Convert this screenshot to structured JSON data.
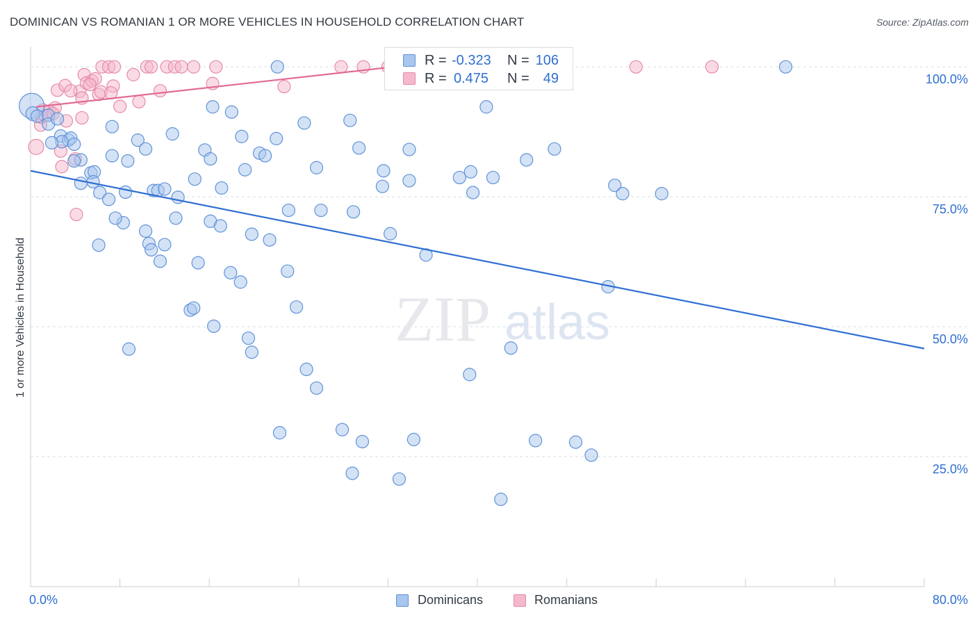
{
  "title": "DOMINICAN VS ROMANIAN 1 OR MORE VEHICLES IN HOUSEHOLD CORRELATION CHART",
  "source": "Source: ZipAtlas.com",
  "watermark": {
    "zip": "ZIP",
    "atlas": "atlas"
  },
  "colors": {
    "blue_fill": "#a9c6ee",
    "blue_stroke": "#5f93d8",
    "blue_line": "#2f6fd1",
    "pink_fill": "#f5b8cc",
    "pink_stroke": "#e58aa8",
    "pink_line": "#e06a94",
    "value_text": "#2f6fd1",
    "grid": "#d9dde3"
  },
  "legend": {
    "r_label": "R =",
    "n_label": "N =",
    "rows": [
      {
        "series": "Dominicans",
        "r": "-0.323",
        "n": "106"
      },
      {
        "series": "Romanians",
        "r": "0.475",
        "n": "49"
      }
    ]
  },
  "chart_data": {
    "type": "scatter",
    "title": "DOMINICAN VS ROMANIAN 1 OR MORE VEHICLES IN HOUSEHOLD CORRELATION CHART",
    "xlabel": "",
    "ylabel": "1 or more Vehicles in Household",
    "xlim": [
      0,
      80
    ],
    "ylim": [
      0,
      103.5
    ],
    "x_tick_labels": [
      "0.0%",
      "80.0%"
    ],
    "y_ticks": [
      25,
      50,
      75,
      100
    ],
    "y_tick_labels": [
      "25.0%",
      "50.0%",
      "75.0%",
      "100.0%"
    ],
    "grid": "horizontal dashed",
    "legend_placement": "top-center",
    "series": [
      {
        "name": "Dominicans",
        "color": "#a9c6ee",
        "trend": {
          "x": [
            0,
            80
          ],
          "y": [
            80.0,
            45.8
          ]
        },
        "points": [
          {
            "x": 0.1,
            "y": 92.5,
            "r": 18
          },
          {
            "x": 0.2,
            "y": 91.0,
            "r": 10
          },
          {
            "x": 0.6,
            "y": 90.5,
            "r": 9
          },
          {
            "x": 1.6,
            "y": 90.7,
            "r": 9
          },
          {
            "x": 1.6,
            "y": 89.0,
            "r": 9
          },
          {
            "x": 2.4,
            "y": 90.0,
            "r": 9
          },
          {
            "x": 2.7,
            "y": 86.7,
            "r": 9
          },
          {
            "x": 3.4,
            "y": 85.9,
            "r": 9
          },
          {
            "x": 3.6,
            "y": 86.3,
            "r": 9
          },
          {
            "x": 3.9,
            "y": 85.1,
            "r": 9
          },
          {
            "x": 2.8,
            "y": 85.6,
            "r": 9
          },
          {
            "x": 1.9,
            "y": 85.4,
            "r": 9
          },
          {
            "x": 4.5,
            "y": 82.1,
            "r": 9
          },
          {
            "x": 5.4,
            "y": 79.6,
            "r": 9
          },
          {
            "x": 7.3,
            "y": 88.5,
            "r": 9
          },
          {
            "x": 7.3,
            "y": 82.9,
            "r": 9
          },
          {
            "x": 8.7,
            "y": 81.9,
            "r": 9
          },
          {
            "x": 3.9,
            "y": 81.9,
            "r": 9
          },
          {
            "x": 5.7,
            "y": 79.8,
            "r": 9
          },
          {
            "x": 4.5,
            "y": 77.6,
            "r": 9
          },
          {
            "x": 5.6,
            "y": 77.9,
            "r": 9
          },
          {
            "x": 6.2,
            "y": 75.8,
            "r": 9
          },
          {
            "x": 7.0,
            "y": 74.5,
            "r": 9
          },
          {
            "x": 9.6,
            "y": 85.9,
            "r": 9
          },
          {
            "x": 10.3,
            "y": 84.2,
            "r": 9
          },
          {
            "x": 11.0,
            "y": 76.2,
            "r": 9
          },
          {
            "x": 11.4,
            "y": 76.2,
            "r": 9
          },
          {
            "x": 8.5,
            "y": 75.9,
            "r": 9
          },
          {
            "x": 12.7,
            "y": 87.1,
            "r": 9
          },
          {
            "x": 12.0,
            "y": 76.5,
            "r": 9
          },
          {
            "x": 13.2,
            "y": 74.9,
            "r": 9
          },
          {
            "x": 14.7,
            "y": 78.4,
            "r": 9
          },
          {
            "x": 15.6,
            "y": 84.0,
            "r": 9
          },
          {
            "x": 16.1,
            "y": 82.3,
            "r": 9
          },
          {
            "x": 17.1,
            "y": 76.7,
            "r": 9
          },
          {
            "x": 18.0,
            "y": 91.3,
            "r": 9
          },
          {
            "x": 18.9,
            "y": 86.6,
            "r": 9
          },
          {
            "x": 19.2,
            "y": 80.2,
            "r": 9
          },
          {
            "x": 20.5,
            "y": 83.4,
            "r": 9
          },
          {
            "x": 21.0,
            "y": 82.9,
            "r": 9
          },
          {
            "x": 22.0,
            "y": 86.2,
            "r": 9
          },
          {
            "x": 22.1,
            "y": 100.0,
            "r": 9
          },
          {
            "x": 24.5,
            "y": 89.2,
            "r": 9
          },
          {
            "x": 23.1,
            "y": 72.4,
            "r": 9
          },
          {
            "x": 25.6,
            "y": 80.6,
            "r": 9
          },
          {
            "x": 26.0,
            "y": 72.4,
            "r": 9
          },
          {
            "x": 28.6,
            "y": 89.7,
            "r": 9
          },
          {
            "x": 29.4,
            "y": 84.4,
            "r": 9
          },
          {
            "x": 28.9,
            "y": 72.1,
            "r": 9
          },
          {
            "x": 31.6,
            "y": 80.0,
            "r": 9
          },
          {
            "x": 31.5,
            "y": 77.0,
            "r": 9
          },
          {
            "x": 32.2,
            "y": 67.9,
            "r": 9
          },
          {
            "x": 33.9,
            "y": 84.1,
            "r": 9
          },
          {
            "x": 33.9,
            "y": 78.1,
            "r": 9
          },
          {
            "x": 35.4,
            "y": 63.8,
            "r": 9
          },
          {
            "x": 38.4,
            "y": 78.7,
            "r": 9
          },
          {
            "x": 39.4,
            "y": 79.8,
            "r": 9
          },
          {
            "x": 39.6,
            "y": 75.8,
            "r": 9
          },
          {
            "x": 40.8,
            "y": 92.3,
            "r": 9
          },
          {
            "x": 41.4,
            "y": 78.7,
            "r": 9
          },
          {
            "x": 44.4,
            "y": 82.1,
            "r": 9
          },
          {
            "x": 46.9,
            "y": 84.2,
            "r": 9
          },
          {
            "x": 52.3,
            "y": 77.2,
            "r": 9
          },
          {
            "x": 53.0,
            "y": 75.6,
            "r": 9
          },
          {
            "x": 56.5,
            "y": 75.6,
            "r": 9
          },
          {
            "x": 67.6,
            "y": 100.0,
            "r": 9
          },
          {
            "x": 16.3,
            "y": 92.3,
            "r": 9
          },
          {
            "x": 16.1,
            "y": 70.3,
            "r": 9
          },
          {
            "x": 17.0,
            "y": 69.4,
            "r": 9
          },
          {
            "x": 13.0,
            "y": 70.9,
            "r": 9
          },
          {
            "x": 10.3,
            "y": 68.4,
            "r": 9
          },
          {
            "x": 10.6,
            "y": 66.0,
            "r": 9
          },
          {
            "x": 12.0,
            "y": 65.8,
            "r": 9
          },
          {
            "x": 10.8,
            "y": 64.8,
            "r": 9
          },
          {
            "x": 8.3,
            "y": 70.0,
            "r": 9
          },
          {
            "x": 7.6,
            "y": 70.9,
            "r": 9
          },
          {
            "x": 6.1,
            "y": 65.7,
            "r": 9
          },
          {
            "x": 11.6,
            "y": 62.6,
            "r": 9
          },
          {
            "x": 15.0,
            "y": 62.3,
            "r": 9
          },
          {
            "x": 17.9,
            "y": 60.4,
            "r": 9
          },
          {
            "x": 18.8,
            "y": 58.6,
            "r": 9
          },
          {
            "x": 19.8,
            "y": 67.8,
            "r": 9
          },
          {
            "x": 21.4,
            "y": 66.7,
            "r": 9
          },
          {
            "x": 23.0,
            "y": 60.7,
            "r": 9
          },
          {
            "x": 23.8,
            "y": 53.8,
            "r": 9
          },
          {
            "x": 14.3,
            "y": 53.2,
            "r": 9
          },
          {
            "x": 14.6,
            "y": 53.6,
            "r": 9
          },
          {
            "x": 16.4,
            "y": 50.1,
            "r": 9
          },
          {
            "x": 19.5,
            "y": 47.8,
            "r": 9
          },
          {
            "x": 19.8,
            "y": 45.1,
            "r": 9
          },
          {
            "x": 8.8,
            "y": 45.7,
            "r": 9
          },
          {
            "x": 24.7,
            "y": 41.8,
            "r": 9
          },
          {
            "x": 25.6,
            "y": 38.2,
            "r": 9
          },
          {
            "x": 22.3,
            "y": 29.6,
            "r": 9
          },
          {
            "x": 27.9,
            "y": 30.2,
            "r": 9
          },
          {
            "x": 29.7,
            "y": 27.9,
            "r": 9
          },
          {
            "x": 34.3,
            "y": 28.3,
            "r": 9
          },
          {
            "x": 39.3,
            "y": 40.8,
            "r": 9
          },
          {
            "x": 43.0,
            "y": 45.9,
            "r": 9
          },
          {
            "x": 42.1,
            "y": 16.8,
            "r": 9
          },
          {
            "x": 33.0,
            "y": 20.7,
            "r": 9
          },
          {
            "x": 28.8,
            "y": 21.8,
            "r": 9
          },
          {
            "x": 45.2,
            "y": 28.1,
            "r": 9
          },
          {
            "x": 48.8,
            "y": 27.8,
            "r": 9
          },
          {
            "x": 50.2,
            "y": 25.3,
            "r": 9
          },
          {
            "x": 51.7,
            "y": 57.7,
            "r": 9
          }
        ]
      },
      {
        "name": "Romanians",
        "color": "#f5b8cc",
        "trend": {
          "x": [
            0.5,
            32.5
          ],
          "y": [
            92.3,
            100.0
          ]
        },
        "points": [
          {
            "x": 0.5,
            "y": 84.6,
            "r": 11
          },
          {
            "x": 0.9,
            "y": 88.8,
            "r": 9
          },
          {
            "x": 1.1,
            "y": 91.7,
            "r": 9
          },
          {
            "x": 1.7,
            "y": 91.5,
            "r": 9
          },
          {
            "x": 2.2,
            "y": 92.1,
            "r": 9
          },
          {
            "x": 2.4,
            "y": 95.5,
            "r": 9
          },
          {
            "x": 3.1,
            "y": 96.4,
            "r": 9
          },
          {
            "x": 2.7,
            "y": 83.8,
            "r": 9
          },
          {
            "x": 2.8,
            "y": 80.8,
            "r": 9
          },
          {
            "x": 3.2,
            "y": 89.6,
            "r": 9
          },
          {
            "x": 4.0,
            "y": 82.3,
            "r": 9
          },
          {
            "x": 4.4,
            "y": 95.3,
            "r": 9
          },
          {
            "x": 4.6,
            "y": 90.2,
            "r": 9
          },
          {
            "x": 4.6,
            "y": 94.0,
            "r": 9
          },
          {
            "x": 4.8,
            "y": 98.5,
            "r": 9
          },
          {
            "x": 5.0,
            "y": 96.9,
            "r": 9
          },
          {
            "x": 5.5,
            "y": 97.3,
            "r": 9
          },
          {
            "x": 5.8,
            "y": 97.7,
            "r": 9
          },
          {
            "x": 6.1,
            "y": 94.7,
            "r": 9
          },
          {
            "x": 6.3,
            "y": 95.2,
            "r": 9
          },
          {
            "x": 6.4,
            "y": 100.0,
            "r": 9
          },
          {
            "x": 7.0,
            "y": 100.0,
            "r": 9
          },
          {
            "x": 7.5,
            "y": 100.0,
            "r": 9
          },
          {
            "x": 7.4,
            "y": 96.3,
            "r": 9
          },
          {
            "x": 8.0,
            "y": 92.4,
            "r": 9
          },
          {
            "x": 9.2,
            "y": 98.5,
            "r": 9
          },
          {
            "x": 9.7,
            "y": 93.3,
            "r": 9
          },
          {
            "x": 10.4,
            "y": 100.0,
            "r": 9
          },
          {
            "x": 10.8,
            "y": 100.0,
            "r": 9
          },
          {
            "x": 11.6,
            "y": 95.4,
            "r": 9
          },
          {
            "x": 12.2,
            "y": 100.0,
            "r": 9
          },
          {
            "x": 12.9,
            "y": 100.0,
            "r": 9
          },
          {
            "x": 13.5,
            "y": 100.0,
            "r": 9
          },
          {
            "x": 14.6,
            "y": 100.0,
            "r": 9
          },
          {
            "x": 16.3,
            "y": 96.8,
            "r": 9
          },
          {
            "x": 16.6,
            "y": 100.0,
            "r": 9
          },
          {
            "x": 22.7,
            "y": 96.2,
            "r": 9
          },
          {
            "x": 27.8,
            "y": 100.0,
            "r": 9
          },
          {
            "x": 29.8,
            "y": 100.0,
            "r": 9
          },
          {
            "x": 32.0,
            "y": 100.0,
            "r": 9
          },
          {
            "x": 54.2,
            "y": 100.0,
            "r": 9
          },
          {
            "x": 61.0,
            "y": 100.0,
            "r": 9
          },
          {
            "x": 4.1,
            "y": 71.6,
            "r": 9
          },
          {
            "x": 1.0,
            "y": 90.3,
            "r": 9
          },
          {
            "x": 1.3,
            "y": 90.6,
            "r": 9
          },
          {
            "x": 2.0,
            "y": 91.0,
            "r": 9
          },
          {
            "x": 3.6,
            "y": 95.4,
            "r": 9
          },
          {
            "x": 7.2,
            "y": 95.0,
            "r": 9
          },
          {
            "x": 5.3,
            "y": 96.6,
            "r": 9
          }
        ]
      }
    ]
  }
}
